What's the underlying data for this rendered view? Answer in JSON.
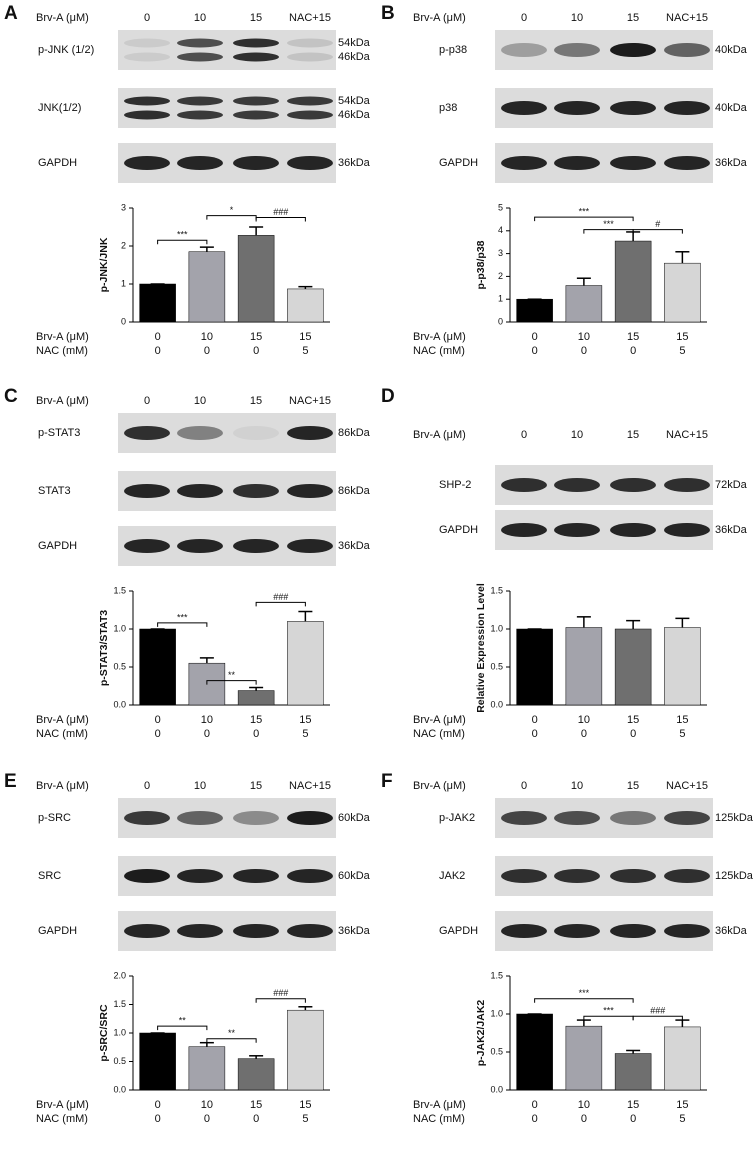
{
  "panels": [
    {
      "letter": "A",
      "header": "Brv-A (μM)",
      "lanes": [
        "0",
        "10",
        "15",
        "NAC+15"
      ],
      "blots": [
        {
          "name": "p-JNK (1/2)",
          "kda": [
            "54kDa",
            "46kDa"
          ]
        },
        {
          "name": "JNK(1/2)",
          "kda": [
            "54kDa",
            "46kDa"
          ]
        },
        {
          "name": "GAPDH",
          "kda": [
            "36kDa"
          ]
        }
      ]
    },
    {
      "letter": "B",
      "header": "Brv-A (μM)",
      "lanes": [
        "0",
        "10",
        "15",
        "NAC+15"
      ],
      "blots": [
        {
          "name": "p-p38",
          "kda": [
            "40kDa"
          ]
        },
        {
          "name": "p38",
          "kda": [
            "40kDa"
          ]
        },
        {
          "name": "GAPDH",
          "kda": [
            "36kDa"
          ]
        }
      ]
    },
    {
      "letter": "C",
      "header": "Brv-A (μM)",
      "lanes": [
        "0",
        "10",
        "15",
        "NAC+15"
      ],
      "blots": [
        {
          "name": "p-STAT3",
          "kda": [
            "86kDa"
          ]
        },
        {
          "name": "STAT3",
          "kda": [
            "86kDa"
          ]
        },
        {
          "name": "GAPDH",
          "kda": [
            "36kDa"
          ]
        }
      ]
    },
    {
      "letter": "D",
      "header": "Brv-A (μM)",
      "lanes": [
        "0",
        "10",
        "15",
        "NAC+15"
      ],
      "blots": [
        {
          "name": "SHP-2",
          "kda": [
            "72kDa"
          ]
        },
        {
          "name": "GAPDH",
          "kda": [
            "36kDa"
          ]
        }
      ]
    },
    {
      "letter": "E",
      "header": "Brv-A (μM)",
      "lanes": [
        "0",
        "10",
        "15",
        "NAC+15"
      ],
      "blots": [
        {
          "name": "p-SRC",
          "kda": [
            "60kDa"
          ]
        },
        {
          "name": "SRC",
          "kda": [
            "60kDa"
          ]
        },
        {
          "name": "GAPDH",
          "kda": [
            "36kDa"
          ]
        }
      ]
    },
    {
      "letter": "F",
      "header": "Brv-A (μM)",
      "lanes": [
        "0",
        "10",
        "15",
        "NAC+15"
      ],
      "blots": [
        {
          "name": "p-JAK2",
          "kda": [
            "125kDa"
          ]
        },
        {
          "name": "JAK2",
          "kda": [
            "125kDa"
          ]
        },
        {
          "name": "GAPDH",
          "kda": [
            "36kDa"
          ]
        }
      ]
    }
  ],
  "chart_data": [
    {
      "type": "bar",
      "y_label": "p-JNK/JNK",
      "category_labels": [
        "Brv-A (μM)",
        "NAC (mM)"
      ],
      "categories": [
        "0",
        "10",
        "15",
        "15"
      ],
      "categories_2": [
        "0",
        "0",
        "0",
        "5"
      ],
      "values": [
        1,
        1.85,
        2.28,
        0.87
      ],
      "errors": [
        0,
        0.12,
        0.22,
        0.06
      ],
      "colors": [
        "#000000",
        "#a3a3ab",
        "#6f6f6f",
        "#d6d6d6"
      ],
      "ylim": [
        0,
        3
      ],
      "yticks": [
        0,
        1,
        2,
        3
      ],
      "annotations": [
        {
          "text": "***",
          "between": [
            0,
            1
          ],
          "y": 2.15
        },
        {
          "text": "*",
          "between": [
            1,
            2
          ],
          "y": 2.8
        },
        {
          "text": "###",
          "between": [
            2,
            3
          ],
          "y": 2.75
        }
      ]
    },
    {
      "type": "bar",
      "y_label": "p-p38/p38",
      "category_labels": [
        "Brv-A (μM)",
        "NAC  (mM)"
      ],
      "categories": [
        "0",
        "10",
        "15",
        "15"
      ],
      "categories_2": [
        "0",
        "0",
        "0",
        "5"
      ],
      "values": [
        1,
        1.6,
        3.55,
        2.58
      ],
      "errors": [
        0,
        0.32,
        0.4,
        0.5
      ],
      "colors": [
        "#000000",
        "#a3a3ab",
        "#6f6f6f",
        "#d6d6d6"
      ],
      "ylim": [
        0,
        5
      ],
      "yticks": [
        0,
        1,
        2,
        3,
        4,
        5
      ],
      "annotations": [
        {
          "text": "***",
          "between": [
            0,
            2
          ],
          "y": 4.6
        },
        {
          "text": "***",
          "between": [
            1,
            2
          ],
          "y": 4.05
        },
        {
          "text": "#",
          "between": [
            2,
            3
          ],
          "y": 4.05
        }
      ]
    },
    {
      "type": "bar",
      "y_label": "p-STAT3/STAT3",
      "category_labels": [
        "Brv-A (μM)",
        "NAC (mM)"
      ],
      "categories": [
        "0",
        "10",
        "15",
        "15"
      ],
      "categories_2": [
        "0",
        "0",
        "0",
        "5"
      ],
      "values": [
        1,
        0.55,
        0.19,
        1.1
      ],
      "errors": [
        0,
        0.07,
        0.04,
        0.13
      ],
      "colors": [
        "#000000",
        "#a3a3ab",
        "#6f6f6f",
        "#d6d6d6"
      ],
      "ylim": [
        0,
        1.5
      ],
      "yticks": [
        {
          "value": 0,
          "label": "0.0"
        },
        {
          "value": 0.5,
          "label": "0.5"
        },
        {
          "value": 1,
          "label": "1.0"
        },
        {
          "value": 1.5,
          "label": "1.5"
        }
      ],
      "annotations": [
        {
          "text": "***",
          "between": [
            0,
            1
          ],
          "y": 1.08
        },
        {
          "text": "**",
          "between": [
            1,
            2
          ],
          "y": 0.32
        },
        {
          "text": "###",
          "between": [
            2,
            3
          ],
          "y": 1.35
        }
      ]
    },
    {
      "type": "bar",
      "y_label": "Relative Expression Level",
      "category_labels": [
        "Brv-A (μM)",
        "NAC  (mM)"
      ],
      "categories": [
        "0",
        "10",
        "15",
        "15"
      ],
      "categories_2": [
        "0",
        "0",
        "0",
        "5"
      ],
      "values": [
        1,
        1.02,
        1.0,
        1.02
      ],
      "errors": [
        0,
        0.14,
        0.11,
        0.12
      ],
      "colors": [
        "#000000",
        "#a3a3ab",
        "#6f6f6f",
        "#d6d6d6"
      ],
      "ylim": [
        0,
        1.5
      ],
      "yticks": [
        {
          "value": 0,
          "label": "0.0"
        },
        {
          "value": 0.5,
          "label": "0.5"
        },
        {
          "value": 1,
          "label": "1.0"
        },
        {
          "value": 1.5,
          "label": "1.5"
        }
      ],
      "annotations": []
    },
    {
      "type": "bar",
      "y_label": "p-SRC/SRC",
      "category_labels": [
        "Brv-A (μM)",
        "NAC  (mM)"
      ],
      "categories": [
        "0",
        "10",
        "15",
        "15"
      ],
      "categories_2": [
        "0",
        "0",
        "0",
        "5"
      ],
      "values": [
        1,
        0.76,
        0.55,
        1.4
      ],
      "errors": [
        0,
        0.07,
        0.05,
        0.06
      ],
      "colors": [
        "#000000",
        "#a3a3ab",
        "#6f6f6f",
        "#d6d6d6"
      ],
      "ylim": [
        0,
        2
      ],
      "yticks": [
        {
          "value": 0,
          "label": "0.0"
        },
        {
          "value": 0.5,
          "label": "0.5"
        },
        {
          "value": 1,
          "label": "1.0"
        },
        {
          "value": 1.5,
          "label": "1.5"
        },
        {
          "value": 2,
          "label": "2.0"
        }
      ],
      "annotations": [
        {
          "text": "**",
          "between": [
            0,
            1
          ],
          "y": 1.12
        },
        {
          "text": "**",
          "between": [
            1,
            2
          ],
          "y": 0.9
        },
        {
          "text": "###",
          "between": [
            2,
            3
          ],
          "y": 1.6
        }
      ]
    },
    {
      "type": "bar",
      "y_label": "p-JAK2/JAK2",
      "category_labels": [
        "Brv-A (μM)",
        "NAC  (mM)"
      ],
      "categories": [
        "0",
        "10",
        "15",
        "15"
      ],
      "categories_2": [
        "0",
        "0",
        "0",
        "5"
      ],
      "values": [
        1,
        0.84,
        0.48,
        0.83
      ],
      "errors": [
        0,
        0.08,
        0.04,
        0.09
      ],
      "colors": [
        "#000000",
        "#a3a3ab",
        "#6f6f6f",
        "#d6d6d6"
      ],
      "ylim": [
        0,
        1.5
      ],
      "yticks": [
        {
          "value": 0,
          "label": "0.0"
        },
        {
          "value": 0.5,
          "label": "0.5"
        },
        {
          "value": 1,
          "label": "1.0"
        },
        {
          "value": 1.5,
          "label": "1.5"
        }
      ],
      "annotations": [
        {
          "text": "***",
          "between": [
            0,
            2
          ],
          "y": 1.2
        },
        {
          "text": "***",
          "between": [
            1,
            2
          ],
          "y": 0.97
        },
        {
          "text": "###",
          "between": [
            2,
            3
          ],
          "y": 0.97
        }
      ]
    }
  ]
}
